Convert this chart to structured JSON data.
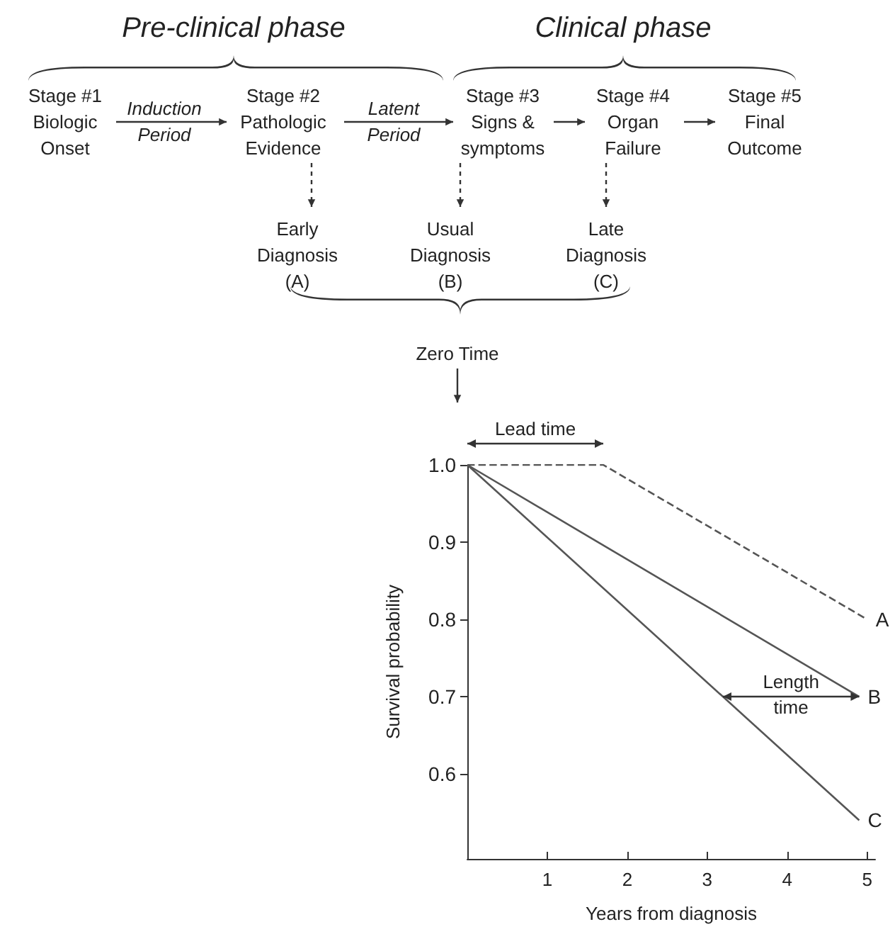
{
  "chart_data": {
    "type": "line",
    "xlabel": "Years from diagnosis",
    "ylabel": "Survival probability",
    "xlim": [
      0,
      5.1
    ],
    "xticks": [
      1,
      2,
      3,
      4,
      5
    ],
    "ylim": [
      0.49,
      1.0
    ],
    "yticks": [
      0.6,
      0.7,
      0.8,
      0.9,
      {
        "value": 1.0,
        "label": "1.0"
      }
    ],
    "grid": false,
    "legend": false,
    "marker": "none",
    "series": [
      {
        "name": "A",
        "color": "#555555",
        "line_style": "dashed",
        "x": [
          0,
          1.7,
          5
        ],
        "values": [
          1.0,
          1.0,
          0.8
        ]
      },
      {
        "name": "B",
        "color": "#555555",
        "line_style": "solid",
        "x": [
          0,
          4.9
        ],
        "values": [
          1.0,
          0.7
        ]
      },
      {
        "name": "C",
        "color": "#555555",
        "line_style": "solid",
        "x": [
          0,
          4.9
        ],
        "values": [
          1.0,
          0.54
        ]
      }
    ],
    "annotations": [
      "Pre-clinical phase",
      "Clinical phase",
      "Stage #1\nBiologic\nOnset",
      "Induction\nPeriod",
      "Stage #2\nPathologic\nEvidence",
      "Latent\nPeriod",
      "Stage #3\nSigns &\nsymptoms",
      "Stage #4\nOrgan\nFailure",
      "Stage #5\nFinal\nOutcome",
      "Early\nDiagnosis\n(A)",
      "Usual\nDiagnosis\n(B)",
      "Late\nDiagnosis\n(C)",
      "Zero Time",
      "Lead time",
      "Length\ntime"
    ]
  }
}
